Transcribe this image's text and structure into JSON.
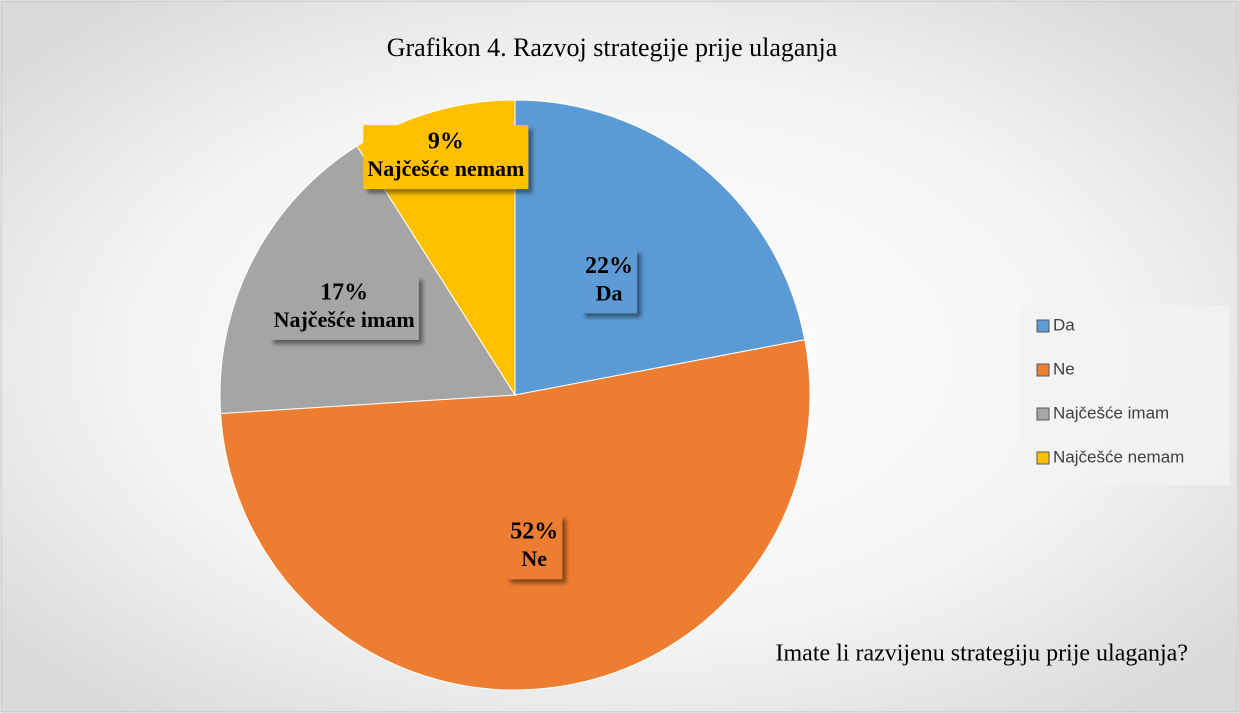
{
  "chart_data": {
    "type": "pie",
    "title": "Grafikon 4. Razvoj strategije prije ulaganja",
    "categories": [
      "Da",
      "Ne",
      "Najčešće imam",
      "Najčešće nemam"
    ],
    "values": [
      22,
      52,
      17,
      9
    ],
    "value_labels": [
      "22%",
      "52%",
      "17%",
      "9%"
    ],
    "colors": [
      "#5b9bd5",
      "#ed7d31",
      "#a5a5a5",
      "#ffc000"
    ],
    "annotation": "Imate li razvijenu strategiju prije ulaganja?",
    "legend": "right"
  }
}
